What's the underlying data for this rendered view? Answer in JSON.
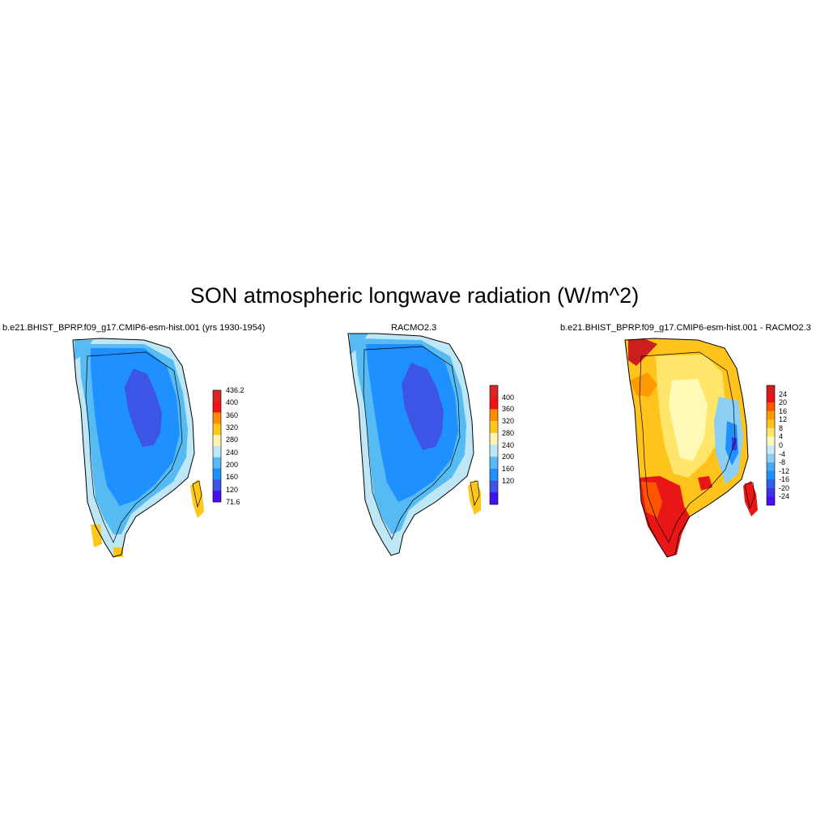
{
  "title": "SON atmospheric longwave radiation (W/m^2)",
  "panels": [
    {
      "title": "b.e21.BHIST_BPRP.f09_g17.CMIP6-esm-hist.001 (yrs 1930-1954)",
      "colorbar": {
        "labels": [
          "436.2",
          "400",
          "360",
          "320",
          "280",
          "240",
          "200",
          "160",
          "120",
          "71.6"
        ],
        "colors": [
          "#dc2626",
          "#f21414",
          "#ff8c00",
          "#ffc71c",
          "#fff5b0",
          "#bde6f7",
          "#55bbf2",
          "#1e90ff",
          "#3c55e6",
          "#4810f0"
        ]
      }
    },
    {
      "title": "RACMO2.3",
      "colorbar": {
        "labels": [
          "400",
          "360",
          "320",
          "280",
          "240",
          "200",
          "160",
          "120"
        ],
        "colors": [
          "#dc2626",
          "#f21414",
          "#ff8c00",
          "#ffc71c",
          "#fff5b0",
          "#bde6f7",
          "#55bbf2",
          "#1e90ff",
          "#3c55e6",
          "#4810f0"
        ]
      }
    },
    {
      "title": "b.e21.BHIST_BPRP.f09_g17.CMIP6-esm-hist.001 - RACMO2.3",
      "colorbar": {
        "labels": [
          "24",
          "20",
          "16",
          "12",
          "8",
          "4",
          "0",
          "-4",
          "-8",
          "-12",
          "-16",
          "-20",
          "-24"
        ],
        "colors": [
          "#cc1e1e",
          "#ea1616",
          "#ff5500",
          "#ff9a00",
          "#ffc31c",
          "#ffe66a",
          "#fffab8",
          "#cde9f7",
          "#8ccff5",
          "#4aa8f0",
          "#1e90ff",
          "#2f5fe6",
          "#3c32e6",
          "#4812f0"
        ]
      }
    }
  ]
}
